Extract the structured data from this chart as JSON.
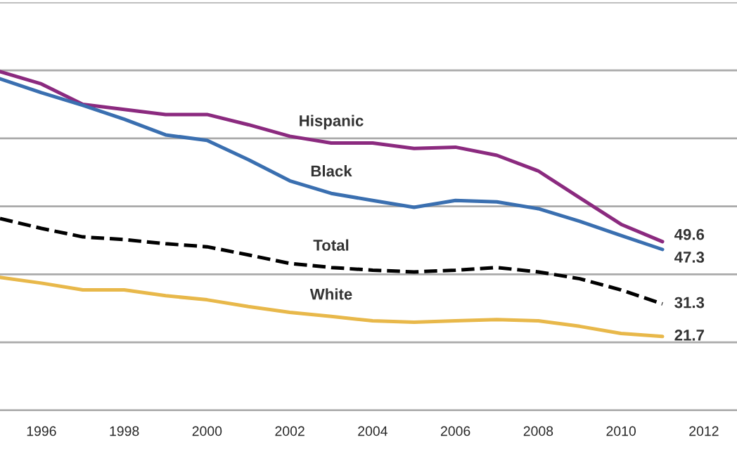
{
  "chart_data": {
    "type": "line",
    "x": [
      1995,
      1996,
      1997,
      1998,
      1999,
      2000,
      2001,
      2002,
      2003,
      2004,
      2005,
      2006,
      2007,
      2008,
      2009,
      2010,
      2011
    ],
    "series": [
      {
        "name": "Hispanic",
        "color": "#8b2a7f",
        "values": [
          99.6,
          96,
          90,
          88.5,
          87,
          87,
          84,
          80.6,
          78.6,
          78.6,
          77,
          77.4,
          75,
          70.4,
          62.5,
          54.7,
          49.6
        ],
        "value_labels": [
          null,
          null,
          null,
          null,
          null,
          null,
          null,
          null,
          null,
          null,
          null,
          null,
          null,
          null,
          null,
          null,
          "49.6"
        ]
      },
      {
        "name": "Black",
        "color": "#3a6fb0",
        "values": [
          97.5,
          93.4,
          89.7,
          85.6,
          81,
          79.4,
          73.7,
          67.5,
          63.8,
          61.7,
          59.7,
          61.7,
          61.3,
          59.3,
          55.6,
          51.4,
          47.3
        ],
        "value_labels": [
          null,
          null,
          null,
          null,
          null,
          null,
          null,
          null,
          null,
          null,
          null,
          null,
          null,
          null,
          null,
          null,
          "47.3"
        ]
      },
      {
        "name": "Total",
        "color": "#000000",
        "line_style": "dashed",
        "values": [
          56.4,
          53.5,
          51,
          50.2,
          49,
          48.1,
          45.7,
          43.2,
          42,
          41.2,
          40.7,
          41.2,
          42,
          40.7,
          38.7,
          35.4,
          31.3
        ],
        "value_labels": [
          null,
          null,
          null,
          null,
          null,
          null,
          null,
          null,
          null,
          null,
          null,
          null,
          null,
          null,
          null,
          null,
          "31.3"
        ]
      },
      {
        "name": "White",
        "color": "#e8b84a",
        "values": [
          39.1,
          37.4,
          35.4,
          35.4,
          33.7,
          32.5,
          30.5,
          28.8,
          27.6,
          26.3,
          25.9,
          26.3,
          26.7,
          26.3,
          24.7,
          22.6,
          21.7
        ],
        "value_labels": [
          null,
          null,
          null,
          null,
          null,
          null,
          null,
          null,
          null,
          null,
          null,
          null,
          null,
          null,
          null,
          null,
          "21.7"
        ]
      }
    ],
    "xlim": [
      1995,
      2012.8
    ],
    "xticks": [
      1996,
      1998,
      2000,
      2002,
      2004,
      2006,
      2008,
      2010,
      2012
    ],
    "ylim": [
      0,
      120
    ],
    "yticks": [
      {
        "value": 0,
        "label": null
      },
      {
        "value": 20,
        "label": null
      },
      {
        "value": 40,
        "label": null
      },
      {
        "value": 60,
        "label": null
      },
      {
        "value": 80,
        "label": null
      },
      {
        "value": 100,
        "label": null
      },
      {
        "value": 120,
        "label": null
      }
    ],
    "grid": "y",
    "tick_labels": "x",
    "marker": "none",
    "legend": false
  }
}
